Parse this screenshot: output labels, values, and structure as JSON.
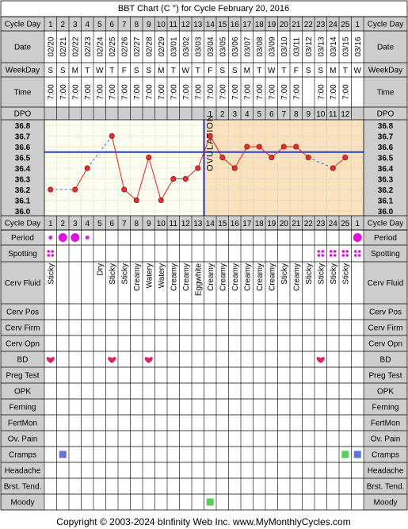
{
  "chart_data": {
    "type": "line",
    "title": "BBT Chart (C °) for Cycle February 20, 2016",
    "copyright": "Copyright © 2003-2024 bInfinity Web Inc.     www.MyMonthlyCycles.com",
    "labels": {
      "cycle_day": "Cycle Day",
      "date": "Date",
      "weekday": "WeekDay",
      "time": "Time",
      "dpo": "DPO",
      "ovulation": "OVULATION"
    },
    "cycle_days": [
      "1",
      "2",
      "3",
      "4",
      "5",
      "6",
      "7",
      "8",
      "9",
      "10",
      "11",
      "12",
      "13",
      "14",
      "15",
      "16",
      "17",
      "18",
      "19",
      "20",
      "21",
      "22",
      "23",
      "24",
      "25",
      "1"
    ],
    "dates": [
      "02/20",
      "02/21",
      "02/22",
      "02/23",
      "02/24",
      "02/25",
      "02/26",
      "02/27",
      "02/28",
      "02/29",
      "03/01",
      "03/02",
      "03/03",
      "03/04",
      "03/05",
      "03/06",
      "03/07",
      "03/08",
      "03/09",
      "03/10",
      "03/11",
      "03/12",
      "03/13",
      "03/14",
      "03/15",
      "03/16"
    ],
    "weekdays": [
      "S",
      "S",
      "M",
      "T",
      "W",
      "T",
      "F",
      "S",
      "S",
      "M",
      "T",
      "W",
      "T",
      "F",
      "S",
      "S",
      "M",
      "T",
      "W",
      "T",
      "F",
      "S",
      "S",
      "M",
      "T",
      "W"
    ],
    "times": [
      "7:00",
      "7:00",
      "7:00",
      "7:00",
      "7:00",
      "7:00",
      "7:00",
      "7:00",
      "7:00",
      "7:00",
      "7:00",
      "7:00",
      "7:00",
      "7:00",
      "7:00",
      "7:00",
      "7:00",
      "7:00",
      "7:00",
      "7:00",
      "7:00",
      "",
      "7:00",
      "7:00",
      "7:00",
      ""
    ],
    "dpo": [
      "",
      "",
      "",
      "",
      "",
      "",
      "",
      "",
      "",
      "",
      "",
      "",
      "",
      "1",
      "2",
      "3",
      "4",
      "5",
      "6",
      "7",
      "8",
      "9",
      "10",
      "11",
      "12",
      ""
    ],
    "y_ticks": [
      "36.8",
      "36.7",
      "36.6",
      "36.5",
      "36.4",
      "36.3",
      "36.2",
      "36.1",
      "36.0"
    ],
    "ylim": [
      36.0,
      36.8
    ],
    "coverline": 36.55,
    "ovulation_day": 13,
    "temperatures": [
      36.2,
      null,
      36.2,
      36.4,
      null,
      36.7,
      36.2,
      36.1,
      36.5,
      36.1,
      36.3,
      36.3,
      36.4,
      36.7,
      36.5,
      36.4,
      36.6,
      36.6,
      36.5,
      36.6,
      36.6,
      36.5,
      null,
      36.4,
      36.5,
      null
    ],
    "rows": [
      {
        "label": "Period",
        "marks": [
          {
            "day": 1,
            "symbol": "dot-small"
          },
          {
            "day": 2,
            "symbol": "dot-large"
          },
          {
            "day": 3,
            "symbol": "dot-large"
          },
          {
            "day": 4,
            "symbol": "dot-small"
          },
          {
            "day": 26,
            "symbol": "dot-large"
          }
        ]
      },
      {
        "label": "Spotting",
        "marks": [
          {
            "day": 1,
            "symbol": "dots"
          },
          {
            "day": 23,
            "symbol": "dots"
          },
          {
            "day": 24,
            "symbol": "dots"
          },
          {
            "day": 25,
            "symbol": "dots"
          },
          {
            "day": 26,
            "symbol": "dots"
          }
        ]
      },
      {
        "label": "Cerv Fluid",
        "values": [
          "Sticky",
          "",
          "",
          "",
          "Dry",
          "Sticky",
          "Sticky",
          "Creamy",
          "Watery",
          "Watery",
          "Creamy",
          "Creamy",
          "Eggwhite",
          "Creamy",
          "Creamy",
          "Creamy",
          "Creamy",
          "Creamy",
          "Creamy",
          "Sticky",
          "Creamy",
          "Sticky",
          "Sticky",
          "Sticky",
          "Sticky",
          ""
        ]
      },
      {
        "label": "Cerv Pos"
      },
      {
        "label": "Cerv Firm"
      },
      {
        "label": "Cerv Opn"
      },
      {
        "label": "BD",
        "marks": [
          {
            "day": 1,
            "symbol": "heart"
          },
          {
            "day": 6,
            "symbol": "heart"
          },
          {
            "day": 9,
            "symbol": "heart"
          },
          {
            "day": 23,
            "symbol": "heart"
          }
        ]
      },
      {
        "label": "Preg Test"
      },
      {
        "label": "OPK"
      },
      {
        "label": "Ferning"
      },
      {
        "label": "FertMon"
      },
      {
        "label": "Ov. Pain"
      },
      {
        "label": "Cramps",
        "marks": [
          {
            "day": 2,
            "symbol": "square-blue"
          },
          {
            "day": 25,
            "symbol": "square-green"
          },
          {
            "day": 26,
            "symbol": "square-blue"
          }
        ]
      },
      {
        "label": "Headache"
      },
      {
        "label": "Brst. Tend."
      },
      {
        "label": "Moody",
        "marks": [
          {
            "day": 14,
            "symbol": "square-green"
          }
        ]
      }
    ],
    "colors": {
      "header_fill": "#cdcdcd",
      "plot_fill": "#fdfdf0",
      "post_ovulation_fill": "#fae2bd",
      "grid": "#bbbbbb",
      "coverline": "#1d40d8",
      "ovulation_line": "#2030b8",
      "temp_line": "#e22222",
      "temp_point": "#e03030",
      "dashed_line": "#5555ee",
      "period": "#e010e0",
      "heart": "#e0206f",
      "square_blue": "#5e78d8",
      "square_green": "#55d055"
    }
  }
}
